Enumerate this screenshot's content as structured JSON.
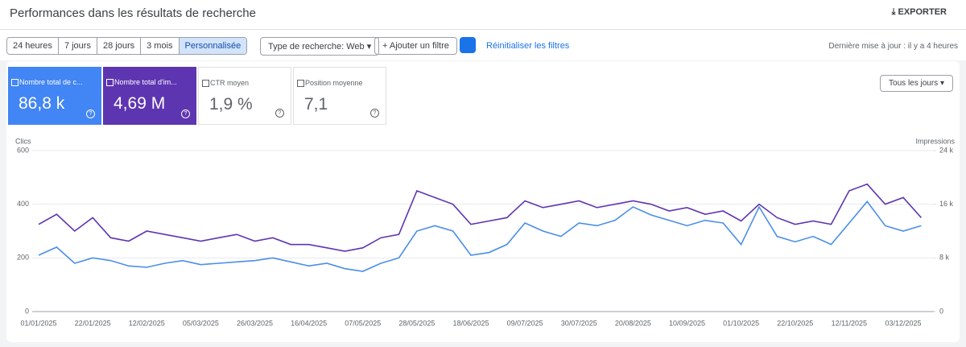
{
  "header": {
    "title": "Performances dans les résultats de recherche",
    "export": "EXPORTER"
  },
  "toolbar": {
    "date_ranges": [
      "24 heures",
      "7 jours",
      "28 jours",
      "3 mois",
      "Personnalisée"
    ],
    "search_type": "Type de recherche: Web",
    "add_filter": "Ajouter un filtre",
    "reset": "Réinitialiser les filtres",
    "last_update": "Dernière mise à jour : il y a 4 heures"
  },
  "metrics": [
    {
      "label": "Nombre total de c...",
      "value": "86,8 k",
      "color": "#4285f4"
    },
    {
      "label": "Nombre total d'im...",
      "value": "4,69 M",
      "color": "#5e35b1"
    },
    {
      "label": "CTR moyen",
      "value": "1,9 %"
    },
    {
      "label": "Position moyenne",
      "value": "7,1"
    }
  ],
  "granularity": "Tous les jours",
  "chart_data": {
    "type": "line",
    "y_label": "Clics",
    "y2_label": "Impressions",
    "categories": [
      "01/01/2025",
      null,
      null,
      "22/01/2025",
      null,
      null,
      "12/02/2025",
      null,
      null,
      "05/03/2025",
      null,
      null,
      "26/03/2025",
      null,
      null,
      "16/04/2025",
      null,
      null,
      "07/05/2025",
      null,
      null,
      "28/05/2025",
      null,
      null,
      "18/06/2025",
      null,
      null,
      "09/07/2025",
      null,
      null,
      "30/07/2025",
      null,
      null,
      "20/08/2025",
      null,
      null,
      "10/09/2025",
      null,
      null,
      "01/10/2025",
      null,
      null,
      "22/10/2025",
      null,
      null,
      "12/11/2025",
      null,
      null,
      "03/12/2025",
      null
    ],
    "ylim": [
      0,
      600
    ],
    "yticks": [
      0,
      200,
      400,
      600
    ],
    "y2lim": [
      0,
      24000
    ],
    "y2ticks": [
      0,
      {
        "value": 8000,
        "label": "8 k"
      },
      {
        "value": 16000,
        "label": "16 k"
      },
      {
        "value": 24000,
        "label": "24 k"
      }
    ],
    "grid": true,
    "series": [
      {
        "color": "#5e35b1",
        "axis": "y2",
        "values": [
          13000,
          14500,
          12000,
          14000,
          11000,
          10500,
          12000,
          11500,
          11000,
          10500,
          11000,
          11500,
          10500,
          11000,
          10000,
          10000,
          9500,
          9000,
          9500,
          11000,
          11500,
          18000,
          17000,
          16000,
          13000,
          13500,
          14000,
          16500,
          15500,
          16000,
          16500,
          15500,
          16000,
          16500,
          16000,
          15000,
          15500,
          14500,
          15000,
          13500,
          16000,
          14000,
          13000,
          13500,
          13000,
          18000,
          19000,
          16000,
          17000,
          14000
        ]
      },
      {
        "color": "#4a8ee8",
        "values": [
          210,
          240,
          180,
          200,
          190,
          170,
          165,
          180,
          190,
          175,
          180,
          185,
          190,
          200,
          185,
          170,
          180,
          160,
          150,
          180,
          200,
          300,
          320,
          300,
          210,
          220,
          250,
          330,
          300,
          280,
          330,
          320,
          340,
          390,
          360,
          340,
          320,
          340,
          330,
          250,
          390,
          280,
          260,
          280,
          250,
          330,
          410,
          320,
          300,
          320
        ]
      }
    ]
  }
}
